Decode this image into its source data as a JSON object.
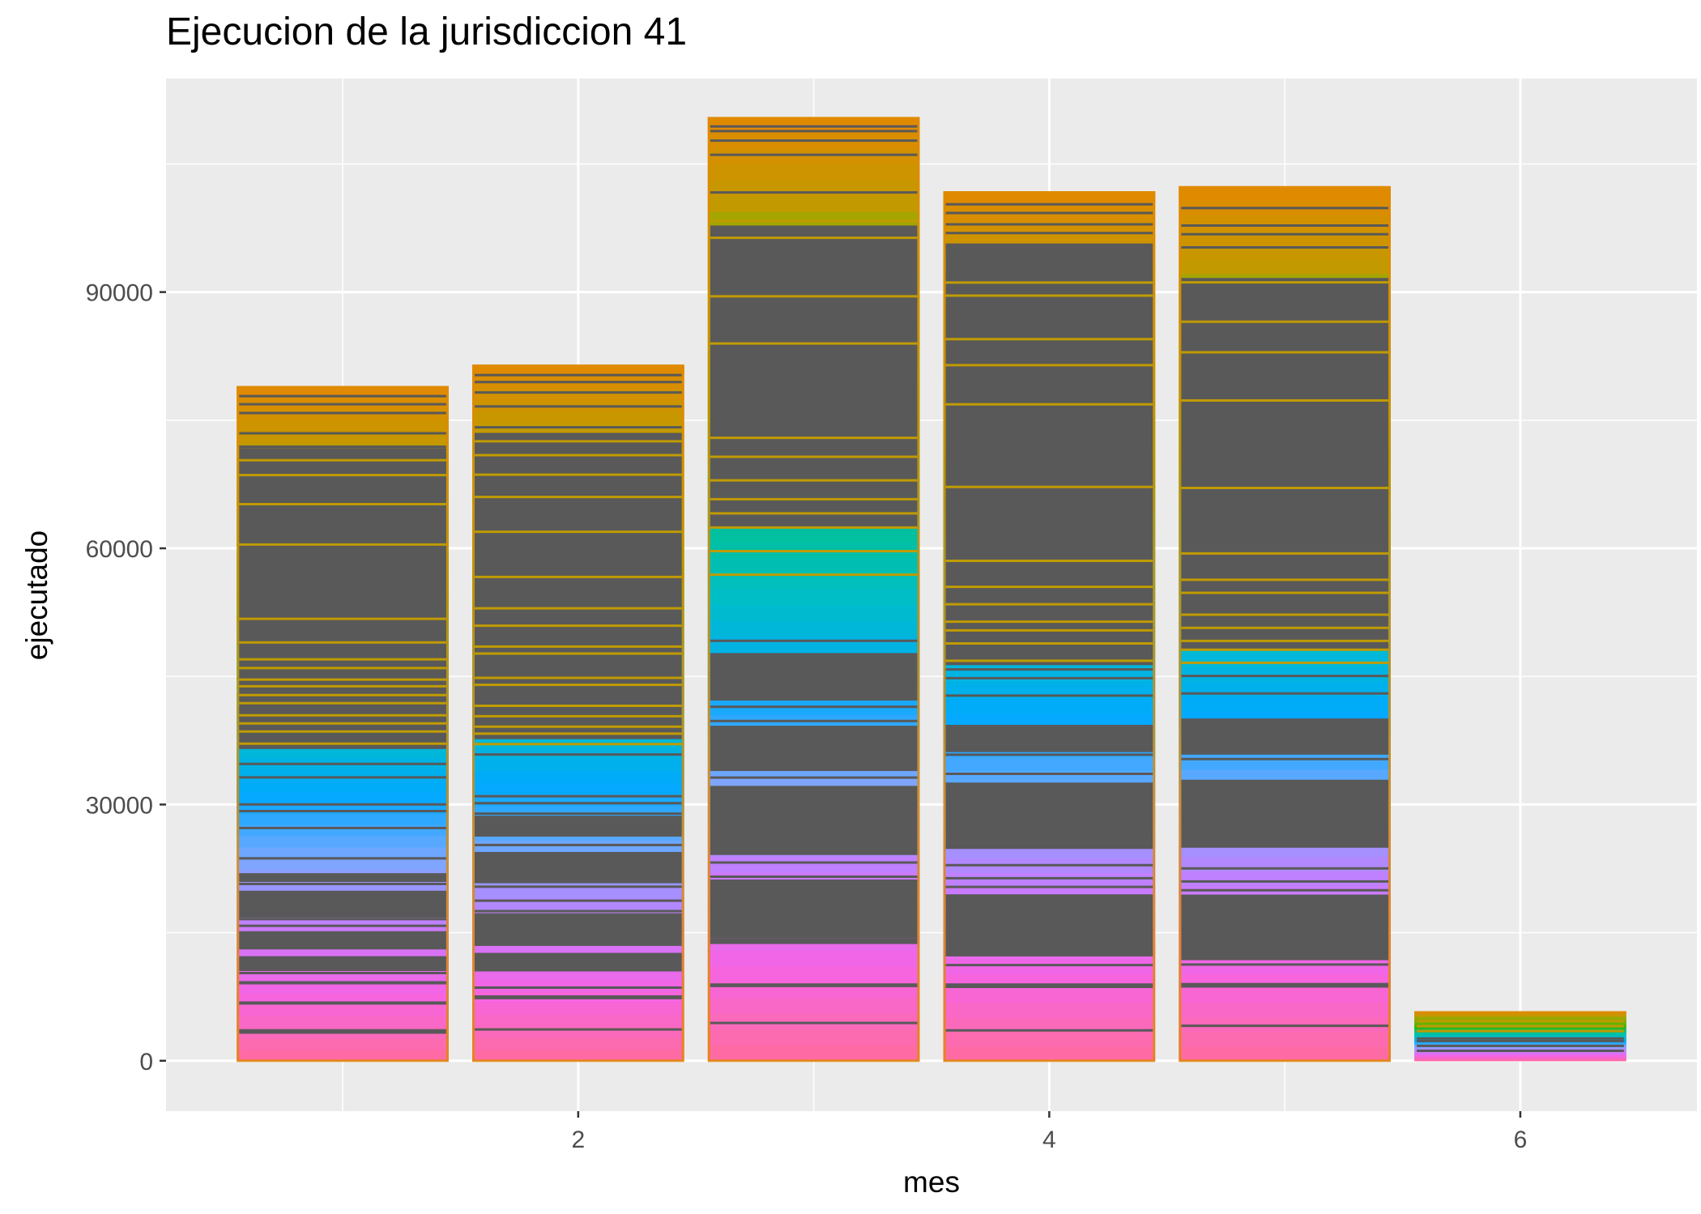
{
  "chart_data": {
    "type": "bar",
    "stacked": true,
    "title": "Ejecucion de la jurisdiccion 41",
    "xlabel": "mes",
    "ylabel": "ejecutado",
    "x_ticks": [
      2,
      4,
      6
    ],
    "y_ticks": [
      0,
      30000,
      60000,
      90000
    ],
    "xlim": [
      0.25,
      6.75
    ],
    "ylim": [
      -5900,
      115000
    ],
    "grid": true,
    "legend": "none",
    "colors": {
      "panel": "#ebebeb",
      "grid": "#ffffff",
      "segment_outline": "#595959",
      "dark_segment": "#595959",
      "gradient": [
        "#ff6c9e",
        "#f564e3",
        "#c77cff",
        "#7ca7ff",
        "#00a9ff",
        "#00bfc4",
        "#00c08b",
        "#39b600",
        "#7cae00",
        "#a3a500",
        "#c09b00",
        "#e08a00"
      ]
    },
    "x": [
      1,
      2,
      3,
      4,
      5,
      6
    ],
    "values": [
      79000,
      81500,
      110500,
      101800,
      102400,
      5800
    ],
    "bar_segments": [
      [
        [
          0,
          0.0,
          0.025,
          "c"
        ],
        [
          0.025,
          0.04,
          0.04,
          "c"
        ],
        [
          0.04,
          0.044,
          0.044,
          "d"
        ],
        [
          0.044,
          0.085,
          0.085,
          "c"
        ],
        [
          0.085,
          0.088,
          0.088,
          "d"
        ],
        [
          0.088,
          0.116,
          0.116,
          "c"
        ],
        [
          0.116,
          0.118,
          0.118,
          "d"
        ],
        [
          0.118,
          0.133,
          0.133,
          "c"
        ],
        [
          0.133,
          0.155,
          0.155,
          "d"
        ],
        [
          0.155,
          0.165,
          0.165,
          "c"
        ],
        [
          0.165,
          0.192,
          0.192,
          "d"
        ],
        [
          0.192,
          0.212,
          0.212,
          "c"
        ],
        [
          0.212,
          0.252,
          0.252,
          "d"
        ],
        [
          0.252,
          0.265,
          0.265,
          "c"
        ],
        [
          0.265,
          0.278,
          0.278,
          "d"
        ],
        [
          0.278,
          0.345,
          0.345,
          "c"
        ],
        [
          0.345,
          0.462,
          0.462,
          "g"
        ],
        [
          0.462,
          0.908,
          0.908,
          "d"
        ],
        [
          0.908,
          1.0,
          1.0,
          "c"
        ]
      ],
      [
        [
          0,
          0.0,
          0.04,
          "c"
        ],
        [
          0.04,
          0.09,
          0.09,
          "c"
        ],
        [
          0.09,
          0.094,
          0.094,
          "d"
        ],
        [
          0.094,
          0.13,
          0.13,
          "c"
        ],
        [
          0.13,
          0.155,
          0.155,
          "d"
        ],
        [
          0.155,
          0.165,
          0.165,
          "c"
        ],
        [
          0.165,
          0.212,
          0.212,
          "d"
        ],
        [
          0.212,
          0.255,
          0.255,
          "c"
        ],
        [
          0.255,
          0.3,
          0.3,
          "d"
        ],
        [
          0.3,
          0.322,
          0.322,
          "c"
        ],
        [
          0.322,
          0.352,
          0.352,
          "d"
        ],
        [
          0.352,
          0.44,
          0.44,
          "c"
        ],
        [
          0.44,
          0.462,
          0.462,
          "g"
        ],
        [
          0.462,
          0.902,
          0.902,
          "d"
        ],
        [
          0.902,
          1.0,
          1.0,
          "c"
        ]
      ],
      [
        [
          0,
          0.0,
          0.03,
          "c"
        ],
        [
          0.03,
          0.04,
          0.04,
          "c"
        ],
        [
          0.04,
          0.078,
          0.078,
          "c"
        ],
        [
          0.078,
          0.082,
          0.082,
          "d"
        ],
        [
          0.082,
          0.126,
          0.126,
          "c"
        ],
        [
          0.126,
          0.13,
          0.13,
          "d"
        ],
        [
          0.13,
          0.192,
          0.192,
          "d"
        ],
        [
          0.192,
          0.218,
          0.218,
          "c"
        ],
        [
          0.218,
          0.29,
          0.29,
          "d"
        ],
        [
          0.29,
          0.307,
          0.307,
          "c"
        ],
        [
          0.307,
          0.355,
          0.355,
          "d"
        ],
        [
          0.355,
          0.383,
          0.383,
          "c"
        ],
        [
          0.383,
          0.432,
          0.432,
          "d"
        ],
        [
          0.432,
          0.45,
          0.45,
          "c"
        ],
        [
          0.45,
          0.517,
          0.517,
          "c"
        ],
        [
          0.517,
          0.565,
          0.565,
          "c"
        ],
        [
          0.565,
          0.598,
          0.598,
          "d"
        ],
        [
          0.598,
          0.885,
          0.885,
          "d"
        ],
        [
          0.885,
          1.0,
          1.0,
          "c"
        ]
      ],
      [
        [
          0,
          0.0,
          0.03,
          "c"
        ],
        [
          0.03,
          0.085,
          0.085,
          "c"
        ],
        [
          0.085,
          0.089,
          0.089,
          "d"
        ],
        [
          0.089,
          0.12,
          0.12,
          "c"
        ],
        [
          0.12,
          0.19,
          0.19,
          "d"
        ],
        [
          0.19,
          0.245,
          0.245,
          "c"
        ],
        [
          0.245,
          0.32,
          0.32,
          "d"
        ],
        [
          0.32,
          0.355,
          0.355,
          "c"
        ],
        [
          0.355,
          0.385,
          0.385,
          "d"
        ],
        [
          0.385,
          0.395,
          0.395,
          "c"
        ],
        [
          0.395,
          0.448,
          0.448,
          "c"
        ],
        [
          0.448,
          0.455,
          0.455,
          "c"
        ],
        [
          0.455,
          0.94,
          0.94,
          "d"
        ],
        [
          0.94,
          1.0,
          1.0,
          "c"
        ]
      ],
      [
        [
          0,
          0.0,
          0.03,
          "c"
        ],
        [
          0.03,
          0.085,
          0.085,
          "c"
        ],
        [
          0.085,
          0.089,
          0.089,
          "d"
        ],
        [
          0.089,
          0.115,
          0.115,
          "c"
        ],
        [
          0.115,
          0.19,
          0.19,
          "d"
        ],
        [
          0.19,
          0.245,
          0.245,
          "c"
        ],
        [
          0.245,
          0.32,
          0.32,
          "d"
        ],
        [
          0.32,
          0.35,
          0.35,
          "c"
        ],
        [
          0.35,
          0.39,
          0.39,
          "d"
        ],
        [
          0.39,
          0.4,
          0.4,
          "c"
        ],
        [
          0.4,
          0.455,
          0.455,
          "c"
        ],
        [
          0.455,
          0.47,
          0.47,
          "c"
        ],
        [
          0.47,
          0.895,
          0.895,
          "d"
        ],
        [
          0.895,
          1.0,
          1.0,
          "c"
        ]
      ],
      [
        [
          0,
          0.0,
          0.5,
          "c"
        ],
        [
          0.5,
          1.0,
          1.0,
          "c"
        ]
      ]
    ],
    "bar_lines": [
      [
        0.045,
        0.085,
        0.115,
        0.13,
        0.15,
        0.18,
        0.2,
        0.21,
        0.215,
        0.235,
        0.25,
        0.262,
        0.275,
        0.3,
        0.345,
        0.37,
        0.38,
        0.42,
        0.44,
        0.47,
        0.488,
        0.5,
        0.512,
        0.53,
        0.542,
        0.555,
        0.565,
        0.582,
        0.595,
        0.62,
        0.655,
        0.765,
        0.825,
        0.868,
        0.89,
        0.91,
        0.93,
        0.96,
        0.973,
        0.985
      ],
      [
        0.045,
        0.09,
        0.105,
        0.13,
        0.15,
        0.18,
        0.2,
        0.215,
        0.23,
        0.25,
        0.262,
        0.29,
        0.31,
        0.33,
        0.355,
        0.37,
        0.38,
        0.44,
        0.455,
        0.47,
        0.48,
        0.495,
        0.51,
        0.54,
        0.55,
        0.585,
        0.595,
        0.625,
        0.65,
        0.695,
        0.76,
        0.81,
        0.842,
        0.87,
        0.89,
        0.91,
        0.94,
        0.96,
        0.975,
        0.985
      ],
      [
        0.04,
        0.08,
        0.125,
        0.145,
        0.16,
        0.18,
        0.195,
        0.21,
        0.225,
        0.25,
        0.27,
        0.29,
        0.3,
        0.315,
        0.345,
        0.36,
        0.375,
        0.383,
        0.395,
        0.41,
        0.425,
        0.445,
        0.515,
        0.54,
        0.565,
        0.58,
        0.595,
        0.615,
        0.64,
        0.66,
        0.76,
        0.81,
        0.872,
        0.89,
        0.92,
        0.96,
        0.975,
        0.985,
        0.99
      ],
      [
        0.035,
        0.085,
        0.11,
        0.125,
        0.15,
        0.19,
        0.2,
        0.21,
        0.225,
        0.245,
        0.27,
        0.3,
        0.31,
        0.33,
        0.352,
        0.36,
        0.375,
        0.385,
        0.42,
        0.44,
        0.45,
        0.46,
        0.48,
        0.495,
        0.505,
        0.525,
        0.545,
        0.575,
        0.66,
        0.755,
        0.8,
        0.83,
        0.88,
        0.895,
        0.905,
        0.935,
        0.952,
        0.962,
        0.975,
        0.985
      ],
      [
        0.04,
        0.085,
        0.11,
        0.125,
        0.15,
        0.18,
        0.195,
        0.205,
        0.22,
        0.245,
        0.27,
        0.3,
        0.32,
        0.345,
        0.36,
        0.375,
        0.39,
        0.42,
        0.44,
        0.455,
        0.47,
        0.48,
        0.495,
        0.51,
        0.535,
        0.55,
        0.58,
        0.655,
        0.755,
        0.81,
        0.845,
        0.89,
        0.93,
        0.945,
        0.955,
        0.975
      ],
      [
        0.2,
        0.3,
        0.4,
        0.45,
        0.6,
        0.7,
        0.8
      ]
    ]
  }
}
